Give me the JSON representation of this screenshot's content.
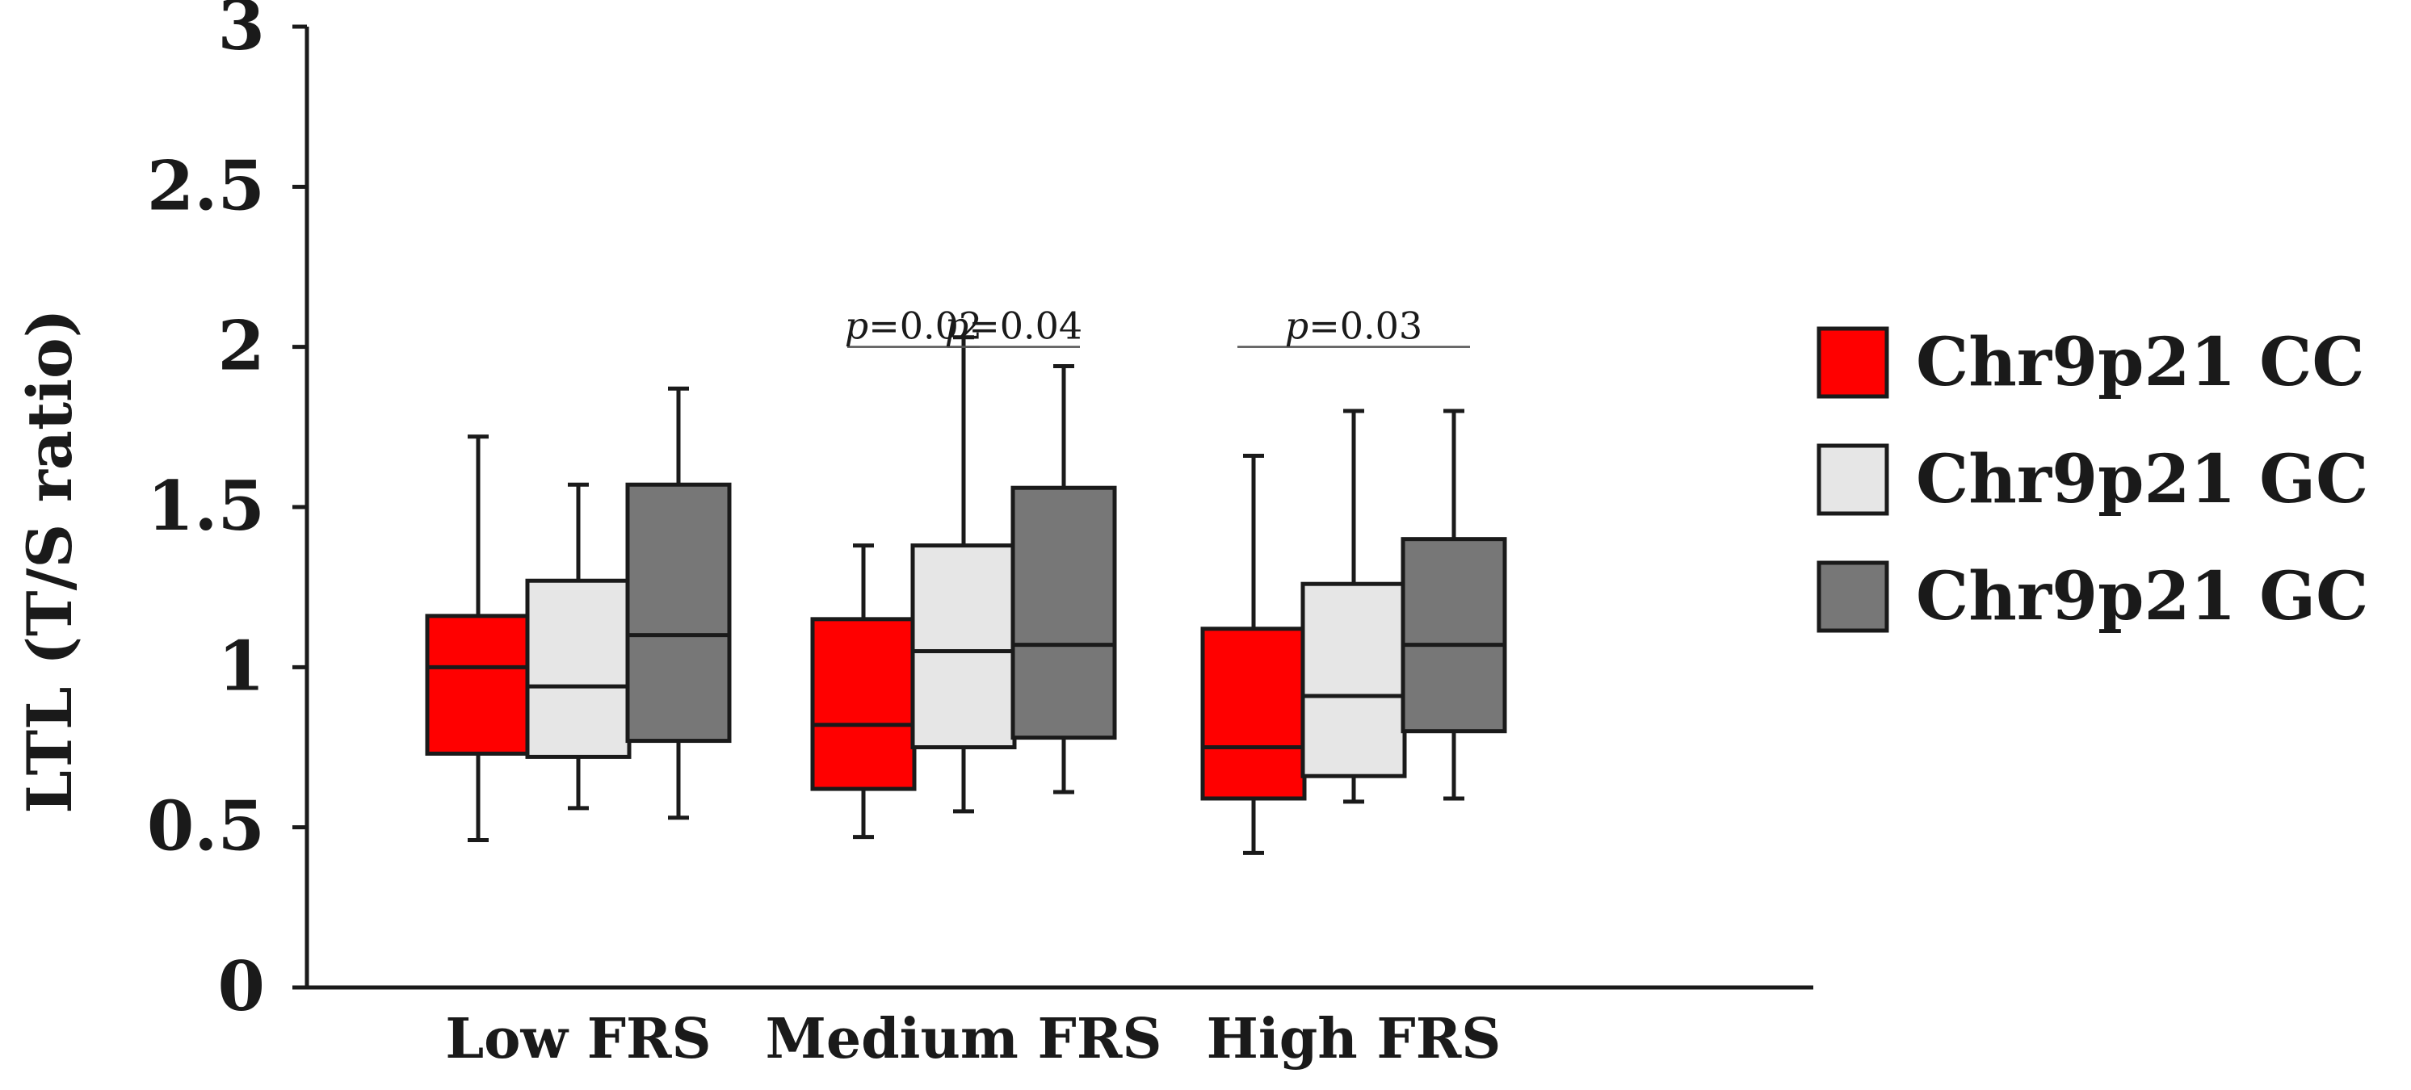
{
  "chart_data": {
    "type": "box",
    "title": "",
    "xlabel": "",
    "ylabel": "LTL (T/S ratio)",
    "ylim": [
      0,
      3
    ],
    "yticks": [
      "0",
      "0.5",
      "1",
      "1.5",
      "2",
      "2.5",
      "3"
    ],
    "yticks_values": [
      0,
      0.5,
      1,
      1.5,
      2,
      2.5,
      3
    ],
    "categories": [
      "Low FRS",
      "Medium FRS",
      "High FRS"
    ],
    "legend_position": "right",
    "series": [
      {
        "name": "Chr9p21 CC",
        "color": "#ff0000",
        "boxes": [
          {
            "min": 0.46,
            "q1": 0.73,
            "median": 1.0,
            "q3": 1.16,
            "max": 1.72
          },
          {
            "min": 0.47,
            "q1": 0.62,
            "median": 0.82,
            "q3": 1.15,
            "max": 1.38
          },
          {
            "min": 0.42,
            "q1": 0.59,
            "median": 0.75,
            "q3": 1.12,
            "max": 1.66
          }
        ]
      },
      {
        "name": "Chr9p21 GC",
        "color": "#e6e6e6",
        "boxes": [
          {
            "min": 0.56,
            "q1": 0.72,
            "median": 0.94,
            "q3": 1.27,
            "max": 1.57
          },
          {
            "min": 0.55,
            "q1": 0.75,
            "median": 1.05,
            "q3": 1.38,
            "max": 2.03
          },
          {
            "min": 0.58,
            "q1": 0.66,
            "median": 0.91,
            "q3": 1.26,
            "max": 1.8
          }
        ]
      },
      {
        "name": "Chr9p21 GC",
        "color": "#777777",
        "boxes": [
          {
            "min": 0.53,
            "q1": 0.77,
            "median": 1.1,
            "q3": 1.57,
            "max": 1.87
          },
          {
            "min": 0.61,
            "q1": 0.78,
            "median": 1.07,
            "q3": 1.56,
            "max": 1.94
          },
          {
            "min": 0.59,
            "q1": 0.8,
            "median": 1.07,
            "q3": 1.4,
            "max": 1.8
          }
        ]
      }
    ],
    "annotations": [
      {
        "p": "p",
        "value": "=0.02",
        "category": 1,
        "from_series": 0,
        "to_series": 1,
        "y": 2.0
      },
      {
        "p": "p",
        "value": "=0.04",
        "category": 1,
        "from_series": 1,
        "to_series": 2,
        "y": 2.0
      },
      {
        "p": "p",
        "value": "=0.03",
        "category": 2,
        "from_series": 0,
        "to_series": 2,
        "y": 2.0
      }
    ]
  }
}
